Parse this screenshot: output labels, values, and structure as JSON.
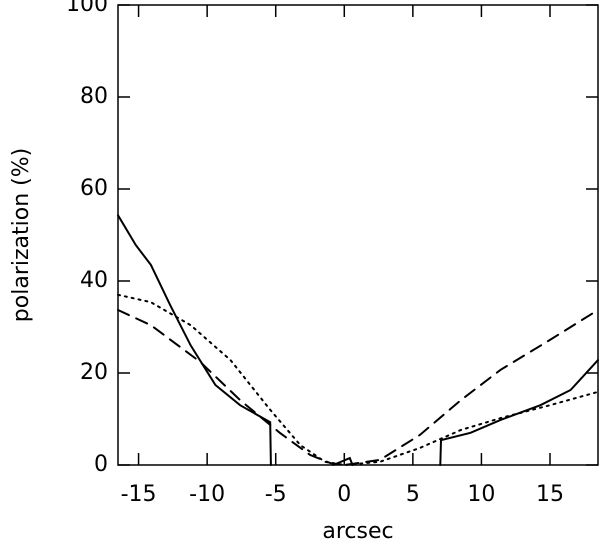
{
  "chart_data": {
    "type": "line",
    "xlabel": "arcsec",
    "ylabel": "polarization (%)",
    "xlim": [
      -16.5,
      18.5
    ],
    "xticks": [
      -15,
      -10,
      -5,
      0,
      5,
      10,
      15
    ],
    "ylim": [
      0,
      100
    ],
    "yticks": [
      0,
      20,
      40,
      60,
      80,
      100
    ],
    "color": "#000000",
    "series": [
      {
        "dash": "solid",
        "x": [
          -16.5,
          -15.2,
          -14.1,
          -12.7,
          -11.2,
          -9.4,
          -7.6,
          -5.4,
          -5.35,
          null,
          -0.8,
          0.4,
          0.6,
          null,
          7,
          7.05,
          9.2,
          11.4,
          14.3,
          16.5,
          18.5
        ],
        "values": [
          54.3,
          47.8,
          43.5,
          34.8,
          26,
          17.4,
          13,
          9.3,
          0,
          null,
          0,
          1.5,
          0,
          null,
          0,
          5.4,
          7,
          9.8,
          13,
          16.3,
          22.8
        ]
      },
      {
        "dash": "dashed",
        "x": [
          -16.5,
          -14.1,
          -10.5,
          -7.6,
          -4.7,
          -2.5,
          -1,
          0,
          2.6,
          5.5,
          8.5,
          11.4,
          15,
          18.5
        ],
        "values": [
          33.7,
          30.4,
          22.4,
          14.1,
          7,
          2.2,
          0.4,
          0,
          1.1,
          6.5,
          14.1,
          20.7,
          27.2,
          33.7
        ]
      },
      {
        "dash": "dotted",
        "x": [
          -16.5,
          -14.1,
          -11.2,
          -8.3,
          -5.4,
          -3.2,
          -1.4,
          0,
          2.6,
          5.5,
          8.5,
          11.4,
          15,
          18.5
        ],
        "values": [
          37,
          35.4,
          30.4,
          22.8,
          12,
          4.3,
          0.7,
          0,
          0.7,
          3.7,
          7.6,
          10.2,
          13,
          15.9
        ]
      }
    ]
  }
}
